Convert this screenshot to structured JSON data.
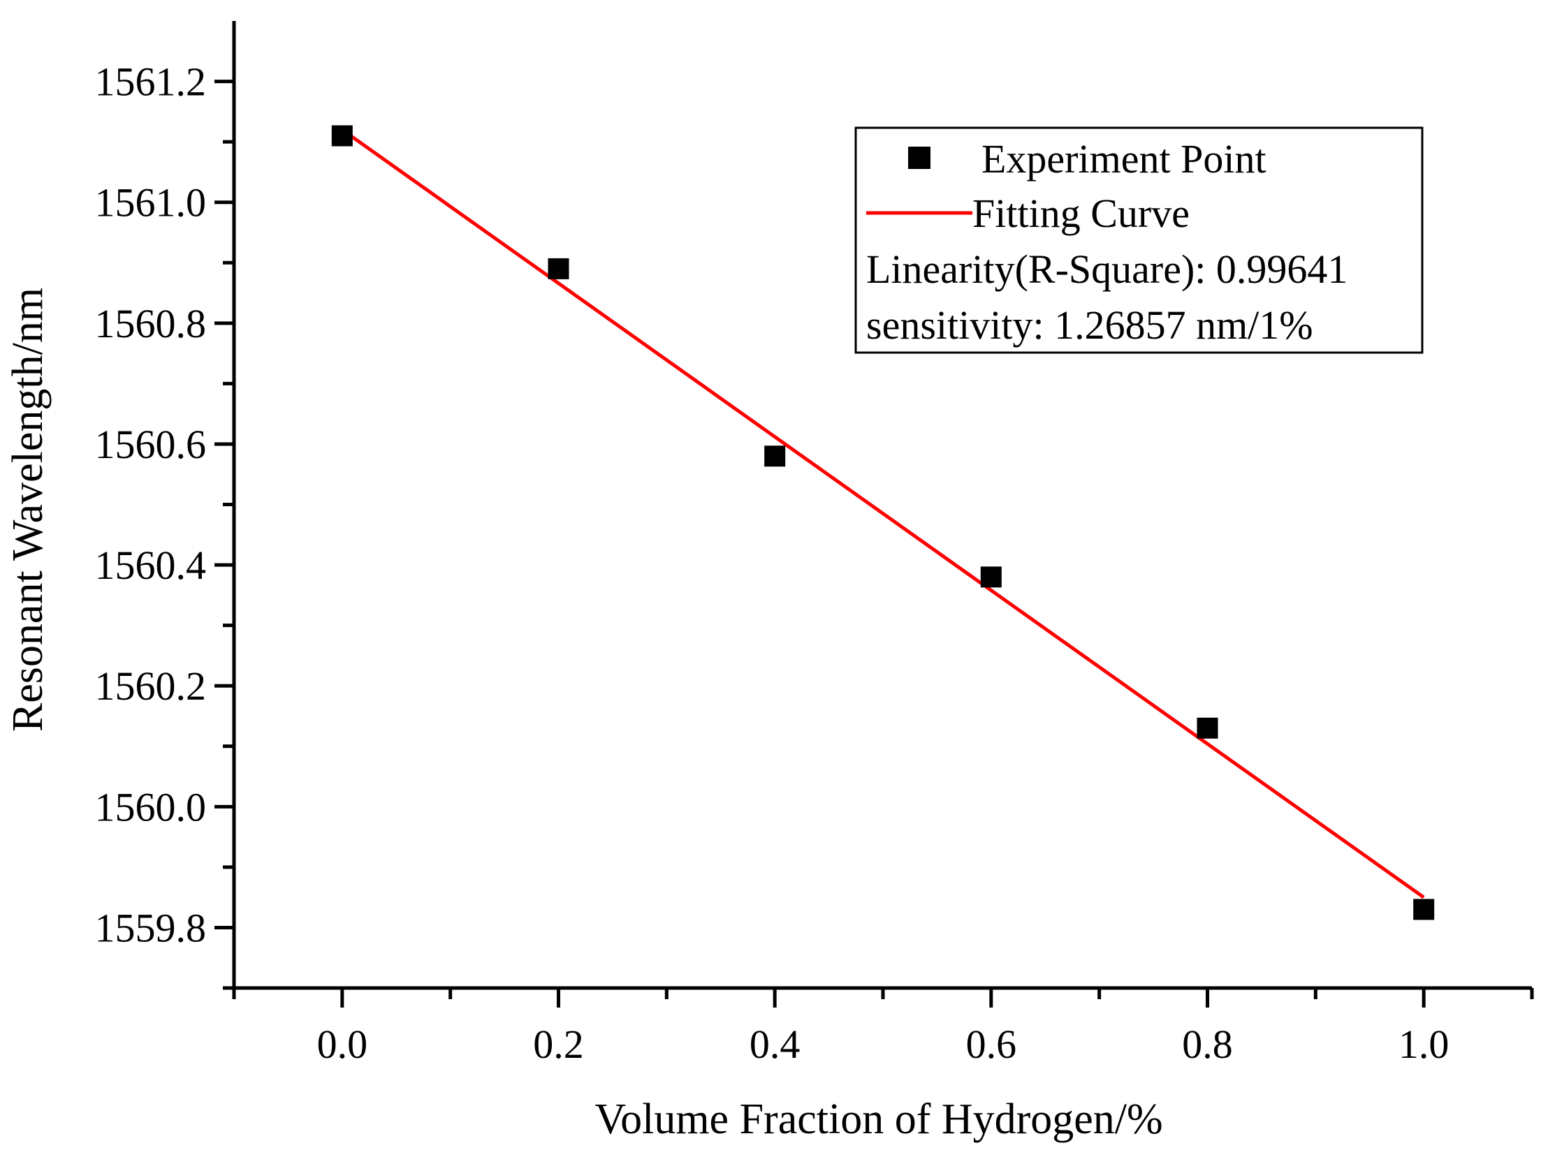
{
  "chart_data": {
    "type": "scatter",
    "title": "",
    "xlabel": "Volume Fraction of Hydrogen/%",
    "ylabel": "Resonant Wavelength/nm",
    "xlim": [
      -0.1,
      1.1
    ],
    "ylim": [
      1559.7,
      1561.3
    ],
    "x_ticks": [
      0.0,
      0.2,
      0.4,
      0.6,
      0.8,
      1.0
    ],
    "x_tick_labels": [
      "0.0",
      "0.2",
      "0.4",
      "0.6",
      "0.8",
      "1.0"
    ],
    "y_ticks": [
      1559.8,
      1560.0,
      1560.2,
      1560.4,
      1560.6,
      1560.8,
      1561.0,
      1561.2
    ],
    "y_tick_labels": [
      "1559.8",
      "1560.0",
      "1560.2",
      "1560.4",
      "1560.6",
      "1560.8",
      "1561.0",
      "1561.2"
    ],
    "series": [
      {
        "name": "Experiment Point",
        "kind": "scatter",
        "marker": "square",
        "color": "#000000",
        "x": [
          0.0,
          0.2,
          0.4,
          0.6,
          0.8,
          1.0
        ],
        "y": [
          1561.11,
          1560.89,
          1560.58,
          1560.38,
          1560.13,
          1559.83
        ]
      },
      {
        "name": "Fitting Curve",
        "kind": "line",
        "color": "#ff0000",
        "x": [
          0.0,
          1.0
        ],
        "y": [
          1561.12,
          1559.85
        ]
      }
    ],
    "legend": {
      "position": "top-right",
      "entries": [
        "Experiment Point",
        "Fitting Curve"
      ],
      "annotations": [
        "Linearity(R-Square):  0.99641",
        "sensitivity:  1.26857 nm/1%"
      ]
    },
    "grid": false
  }
}
